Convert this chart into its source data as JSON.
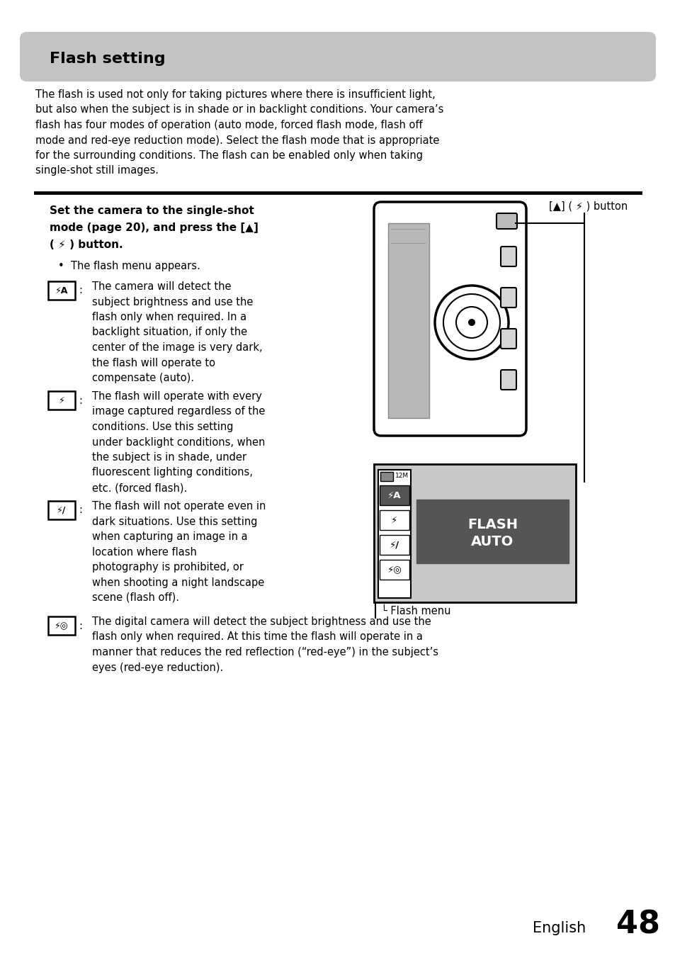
{
  "bg_color": "#ffffff",
  "title_bg_color": "#c3c3c3",
  "title_text": "Flash setting",
  "page_number": "48",
  "lang_label": "English",
  "intro_lines": [
    "The flash is used not only for taking pictures where there is insufficient light,",
    "but also when the subject is in shade or in backlight conditions. Your camera’s",
    "flash has four modes of operation (auto mode, forced flash mode, flash off",
    "mode and red-eye reduction mode). Select the flash mode that is appropriate",
    "for the surrounding conditions. The flash can be enabled only when taking",
    "single-shot still images."
  ],
  "bold_instruction_lines": [
    "Set the camera to the single-shot",
    "mode (page 20), and press the [▲]",
    "( ⚡ ) button."
  ],
  "bullet_line": "The flash menu appears.",
  "auto_lines": [
    "The camera will detect the",
    "subject brightness and use the",
    "flash only when required. In a",
    "backlight situation, if only the",
    "center of the image is very dark,",
    "the flash will operate to",
    "compensate (auto)."
  ],
  "forced_lines": [
    "The flash will operate with every",
    "image captured regardless of the",
    "conditions. Use this setting",
    "under backlight conditions, when",
    "the subject is in shade, under",
    "fluorescent lighting conditions,",
    "etc. (forced flash)."
  ],
  "off_lines": [
    "The flash will not operate even in",
    "dark situations. Use this setting",
    "when capturing an image in a",
    "location where flash",
    "photography is prohibited, or",
    "when shooting a night landscape",
    "scene (flash off)."
  ],
  "redeye_lines": [
    "The digital camera will detect the subject brightness and use the",
    "flash only when required. At this time the flash will operate in a",
    "manner that reduces the red reflection (“red-eye”) in the subject’s",
    "eyes (red-eye reduction)."
  ],
  "button_label": "[▲] ( ⚡ ) button",
  "flash_menu_label": "Flash menu",
  "flash_menu_text1": "FLASH",
  "flash_menu_text2": "AUTO"
}
